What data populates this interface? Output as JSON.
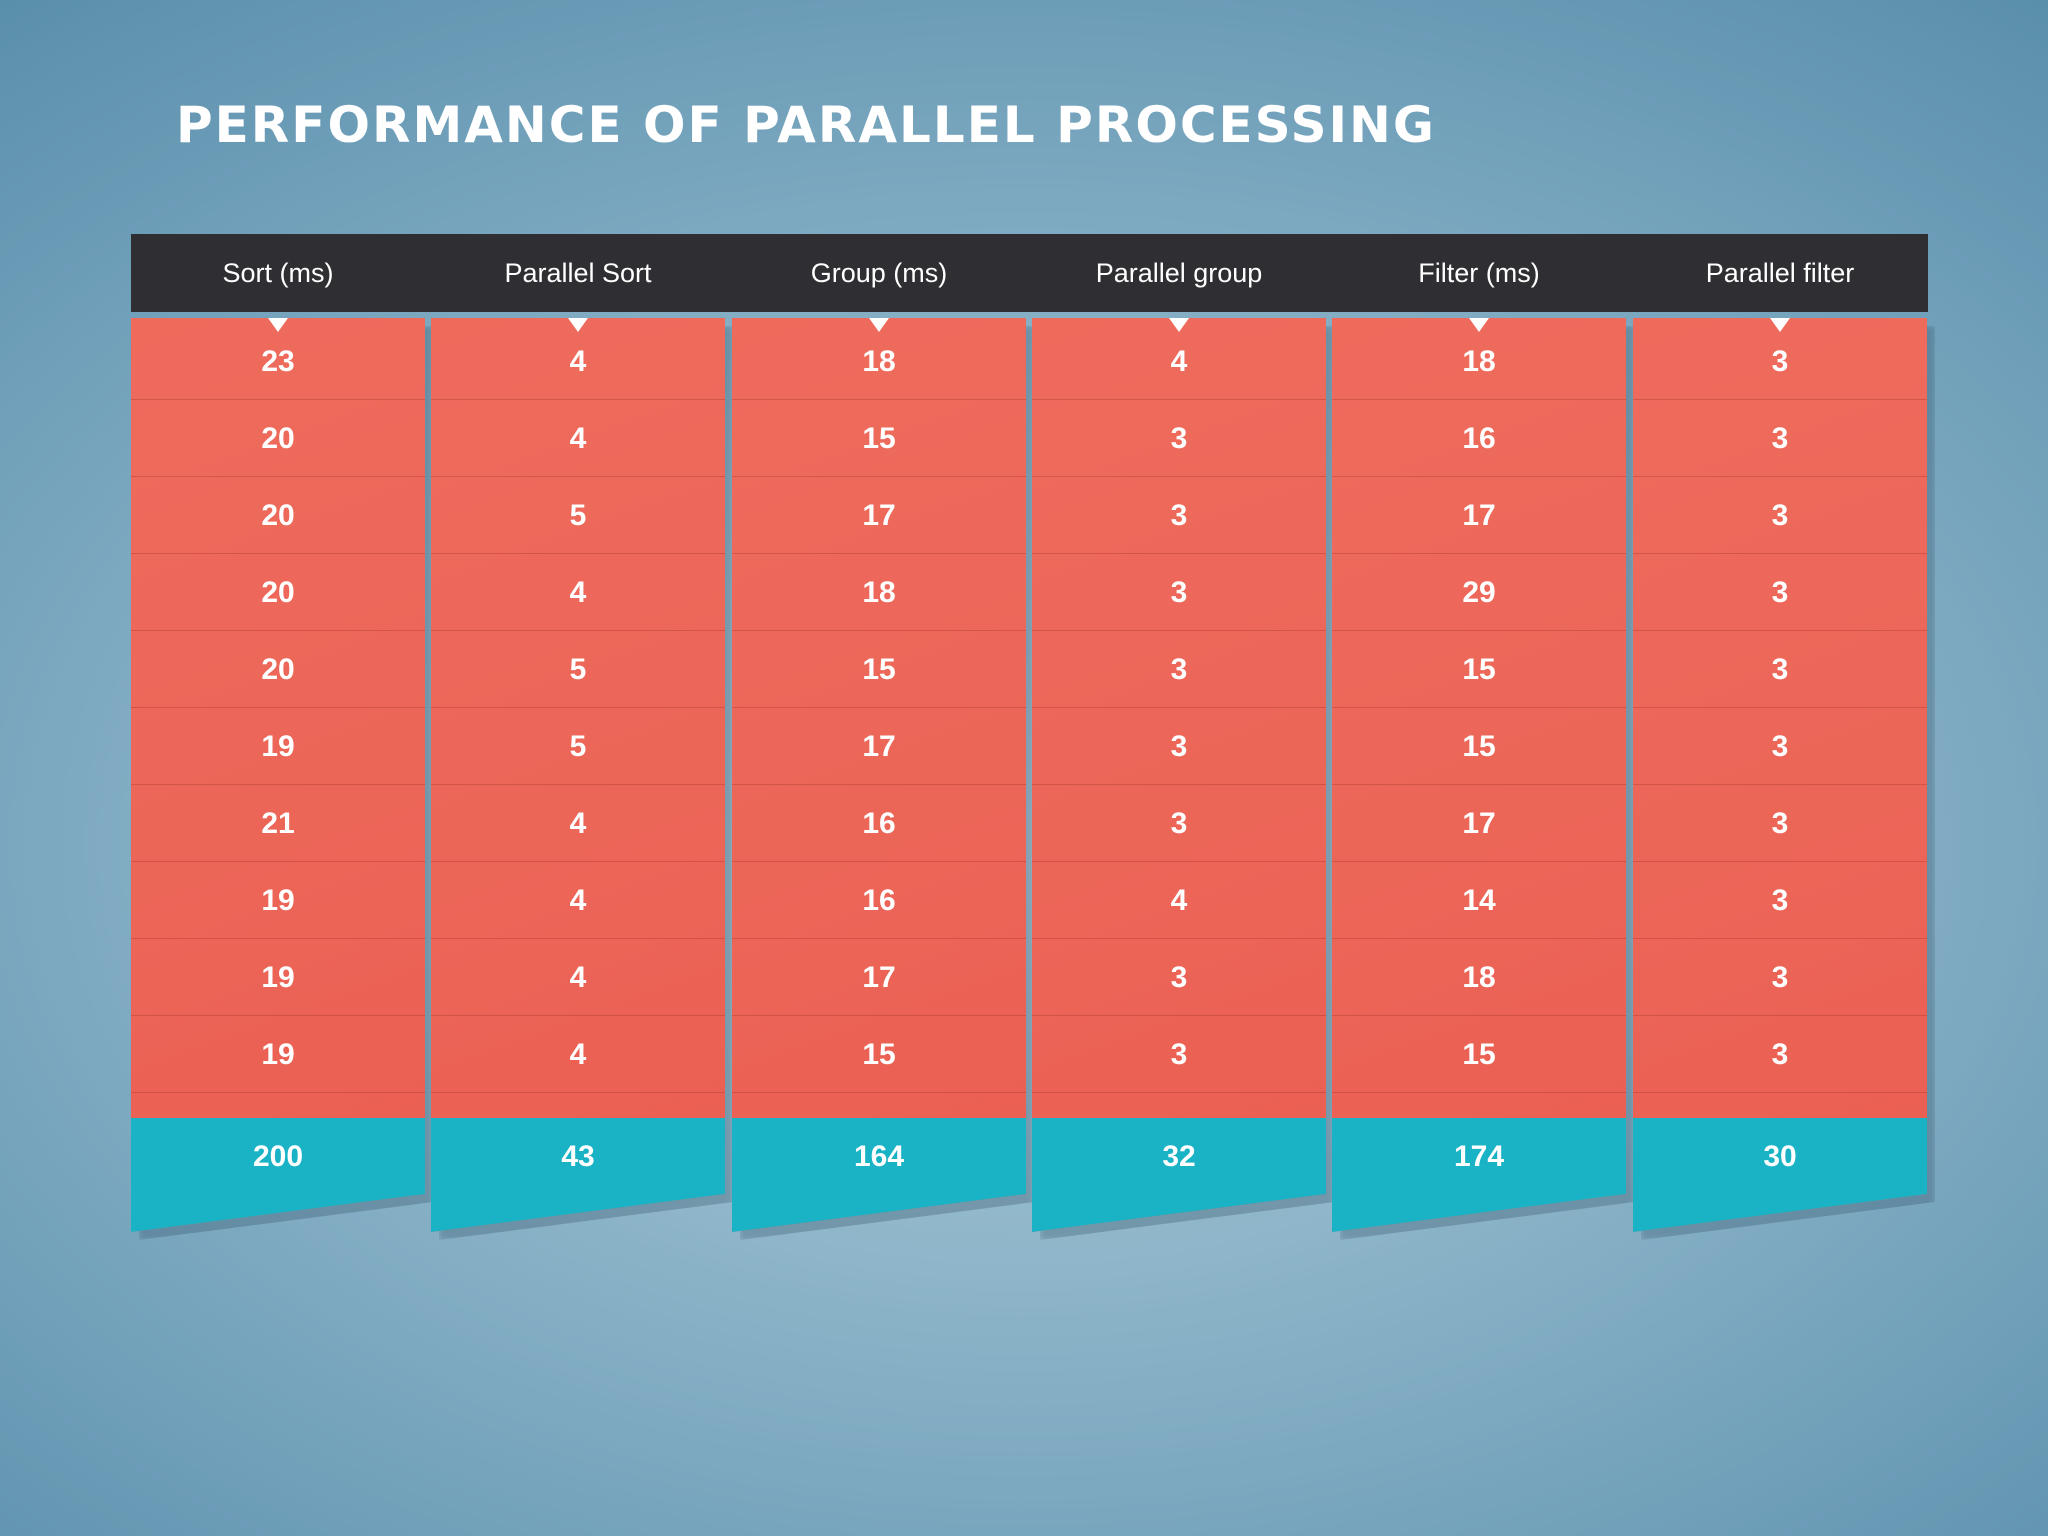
{
  "title": "PERFORMANCE OF PARALLEL PROCESSING",
  "colors": {
    "header_bg": "#2e2e33",
    "cell_bg": "#ec6658",
    "total_bg": "#1ab3c5",
    "text": "#ffffff"
  },
  "chart_data": {
    "type": "table",
    "columns": [
      "Sort  (ms)",
      "Parallel Sort",
      "Group  (ms)",
      "Parallel group",
      "Filter (ms)",
      "Parallel filter"
    ],
    "rows": [
      [
        "23",
        "4",
        "18",
        "4",
        "18",
        "3"
      ],
      [
        "20",
        "4",
        "15",
        "3",
        "16",
        "3"
      ],
      [
        "20",
        "5",
        "17",
        "3",
        "17",
        "3"
      ],
      [
        "20",
        "4",
        "18",
        "3",
        "29",
        "3"
      ],
      [
        "20",
        "5",
        "15",
        "3",
        "15",
        "3"
      ],
      [
        "19",
        "5",
        "17",
        "3",
        "15",
        "3"
      ],
      [
        "21",
        "4",
        "16",
        "3",
        "17",
        "3"
      ],
      [
        "19",
        "4",
        "16",
        "4",
        "14",
        "3"
      ],
      [
        "19",
        "4",
        "17",
        "3",
        "18",
        "3"
      ],
      [
        "19",
        "4",
        "15",
        "3",
        "15",
        "3"
      ]
    ],
    "totals": [
      "200",
      "43",
      "164",
      "32",
      "174",
      "30"
    ]
  }
}
